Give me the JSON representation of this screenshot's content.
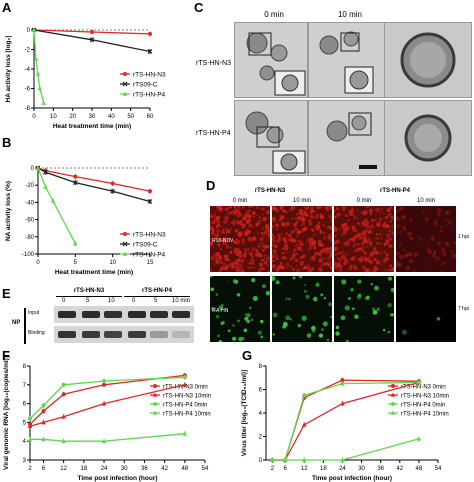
{
  "figure": {
    "panel_letters": [
      "A",
      "B",
      "C",
      "D",
      "E",
      "F",
      "G"
    ],
    "panel_C": {
      "col_labels": [
        "0 min",
        "10 min"
      ],
      "row_labels": [
        "rTS-HN-N3",
        "rTS-HN-P4"
      ]
    },
    "panel_D": {
      "group_labels": [
        "rTS-HN-N3",
        "rTS-HN-P4"
      ],
      "col_labels": [
        "0 min",
        "10 min",
        "0 min",
        "10 min"
      ],
      "row_labels": [
        "R18-NDV",
        "IFA-HN"
      ],
      "time_labels": [
        "1 hpi",
        "7 hpi"
      ],
      "colors": {
        "red": "#c8201a",
        "green": "#3ec43e"
      }
    },
    "panel_E": {
      "group_labels": [
        "rTS-HN-N3",
        "rTS-HN-P4"
      ],
      "time_labels": [
        "0",
        "5",
        "10",
        "0",
        "5",
        "10 min"
      ],
      "row_labels": [
        "Input",
        "Binding"
      ],
      "side_label": "NP"
    }
  },
  "chart_data": [
    {
      "panel": "A",
      "type": "line",
      "xlabel": "Heat treatment time (min)",
      "ylabel": "HA activity loss [log₂]",
      "xlim": [
        0,
        60
      ],
      "ylim": [
        -8,
        0
      ],
      "xticks": [
        "0",
        "10",
        "20",
        "30",
        "40",
        "50",
        "60"
      ],
      "yticks": [
        "0",
        "-2",
        "-4",
        "-6",
        "-8"
      ],
      "legend": "right",
      "series": [
        {
          "name": "rTS-HN-N3",
          "color": "#e0262a",
          "marker": "circle",
          "x": [
            0,
            30,
            60
          ],
          "y": [
            0,
            -0.2,
            -0.4
          ]
        },
        {
          "name": "rTS09-C",
          "color": "#222222",
          "marker": "x",
          "x": [
            0,
            30,
            60
          ],
          "y": [
            0,
            -1.0,
            -2.2
          ]
        },
        {
          "name": "rTS-HN-P4",
          "color": "#5fd84f",
          "marker": "triangle",
          "x": [
            0,
            1,
            2,
            3,
            5
          ],
          "y": [
            0,
            -3,
            -4.5,
            -6,
            -7.5
          ]
        }
      ]
    },
    {
      "panel": "B",
      "type": "line",
      "xlabel": "Heat treatment time (min)",
      "ylabel": "NA activity loss (%)",
      "xlim": [
        0,
        15
      ],
      "ylim": [
        -100,
        0
      ],
      "xticks": [
        "0",
        "5",
        "10",
        "15"
      ],
      "yticks": [
        "0",
        "-20",
        "-40",
        "-60",
        "-80",
        "-100"
      ],
      "legend": "right",
      "series": [
        {
          "name": "rTS-HN-N3",
          "color": "#e0262a",
          "marker": "circle",
          "x": [
            0,
            1,
            5,
            10,
            15
          ],
          "y": [
            0,
            -3,
            -10,
            -18,
            -27
          ]
        },
        {
          "name": "rTS09-C",
          "color": "#222222",
          "marker": "x",
          "x": [
            0,
            1,
            5,
            10,
            15
          ],
          "y": [
            0,
            -5,
            -17,
            -27,
            -39
          ]
        },
        {
          "name": "rTS-HN-P4",
          "color": "#5fd84f",
          "marker": "triangle",
          "x": [
            0,
            1,
            2,
            5
          ],
          "y": [
            0,
            -22,
            -38,
            -88
          ]
        }
      ]
    },
    {
      "panel": "F",
      "type": "line",
      "xlabel": "Time post infection (hour)",
      "ylabel": "Viral genomic RNA [log₁₀(copies/ml)]",
      "xlim": [
        2,
        54
      ],
      "ylim": [
        3,
        8
      ],
      "xticks": [
        "2",
        "6",
        "12",
        "18",
        "24",
        "30",
        "36",
        "42",
        "48",
        "54"
      ],
      "yticks": [
        "3",
        "4",
        "5",
        "6",
        "7",
        "8"
      ],
      "legend": "right",
      "series": [
        {
          "name": "rTS-HN-N3 0min",
          "color": "#e0262a",
          "marker": "circle",
          "x": [
            2,
            6,
            12,
            24,
            48
          ],
          "y": [
            4.9,
            5.6,
            6.5,
            7.0,
            7.5
          ]
        },
        {
          "name": "rTS-HN-N3 10min",
          "color": "#e0262a",
          "marker": "triangle",
          "x": [
            2,
            6,
            12,
            24,
            48
          ],
          "y": [
            4.8,
            5.0,
            5.3,
            6.0,
            7.0
          ]
        },
        {
          "name": "rTS-HN-P4 0min",
          "color": "#5fd84f",
          "marker": "circle",
          "x": [
            2,
            6,
            12,
            24,
            48
          ],
          "y": [
            5.2,
            5.9,
            7.0,
            7.2,
            7.4
          ]
        },
        {
          "name": "rTS-HN-P4 10min",
          "color": "#5fd84f",
          "marker": "triangle",
          "x": [
            2,
            6,
            12,
            24,
            48
          ],
          "y": [
            4.1,
            4.1,
            4.0,
            4.0,
            4.4
          ]
        }
      ]
    },
    {
      "panel": "G",
      "type": "line",
      "xlabel": "Time post infection (hour)",
      "ylabel": "Virus titer [log₁₀(TCID₅₀/ml)]",
      "xlim": [
        0,
        54
      ],
      "ylim": [
        0,
        8
      ],
      "xticks": [
        "2",
        "6",
        "12",
        "18",
        "24",
        "30",
        "36",
        "42",
        "48",
        "54"
      ],
      "yticks": [
        "0",
        "2",
        "4",
        "6",
        "8"
      ],
      "legend": "right",
      "series": [
        {
          "name": "rTS-HN-N3 0min",
          "color": "#e0262a",
          "marker": "circle",
          "x": [
            2,
            6,
            12,
            24,
            48
          ],
          "y": [
            0,
            0,
            5.3,
            6.8,
            6.7
          ]
        },
        {
          "name": "rTS-HN-N3 10min",
          "color": "#e0262a",
          "marker": "triangle",
          "x": [
            2,
            6,
            12,
            24,
            48
          ],
          "y": [
            0,
            0,
            3.0,
            4.8,
            6.6
          ]
        },
        {
          "name": "rTS-HN-P4 0min",
          "color": "#5fd84f",
          "marker": "circle",
          "x": [
            2,
            6,
            12,
            24,
            48
          ],
          "y": [
            0,
            0,
            5.5,
            6.5,
            6.6
          ]
        },
        {
          "name": "rTS-HN-P4 10min",
          "color": "#5fd84f",
          "marker": "triangle",
          "x": [
            2,
            6,
            12,
            24,
            48
          ],
          "y": [
            0,
            0,
            0,
            0,
            1.8
          ]
        }
      ]
    }
  ]
}
